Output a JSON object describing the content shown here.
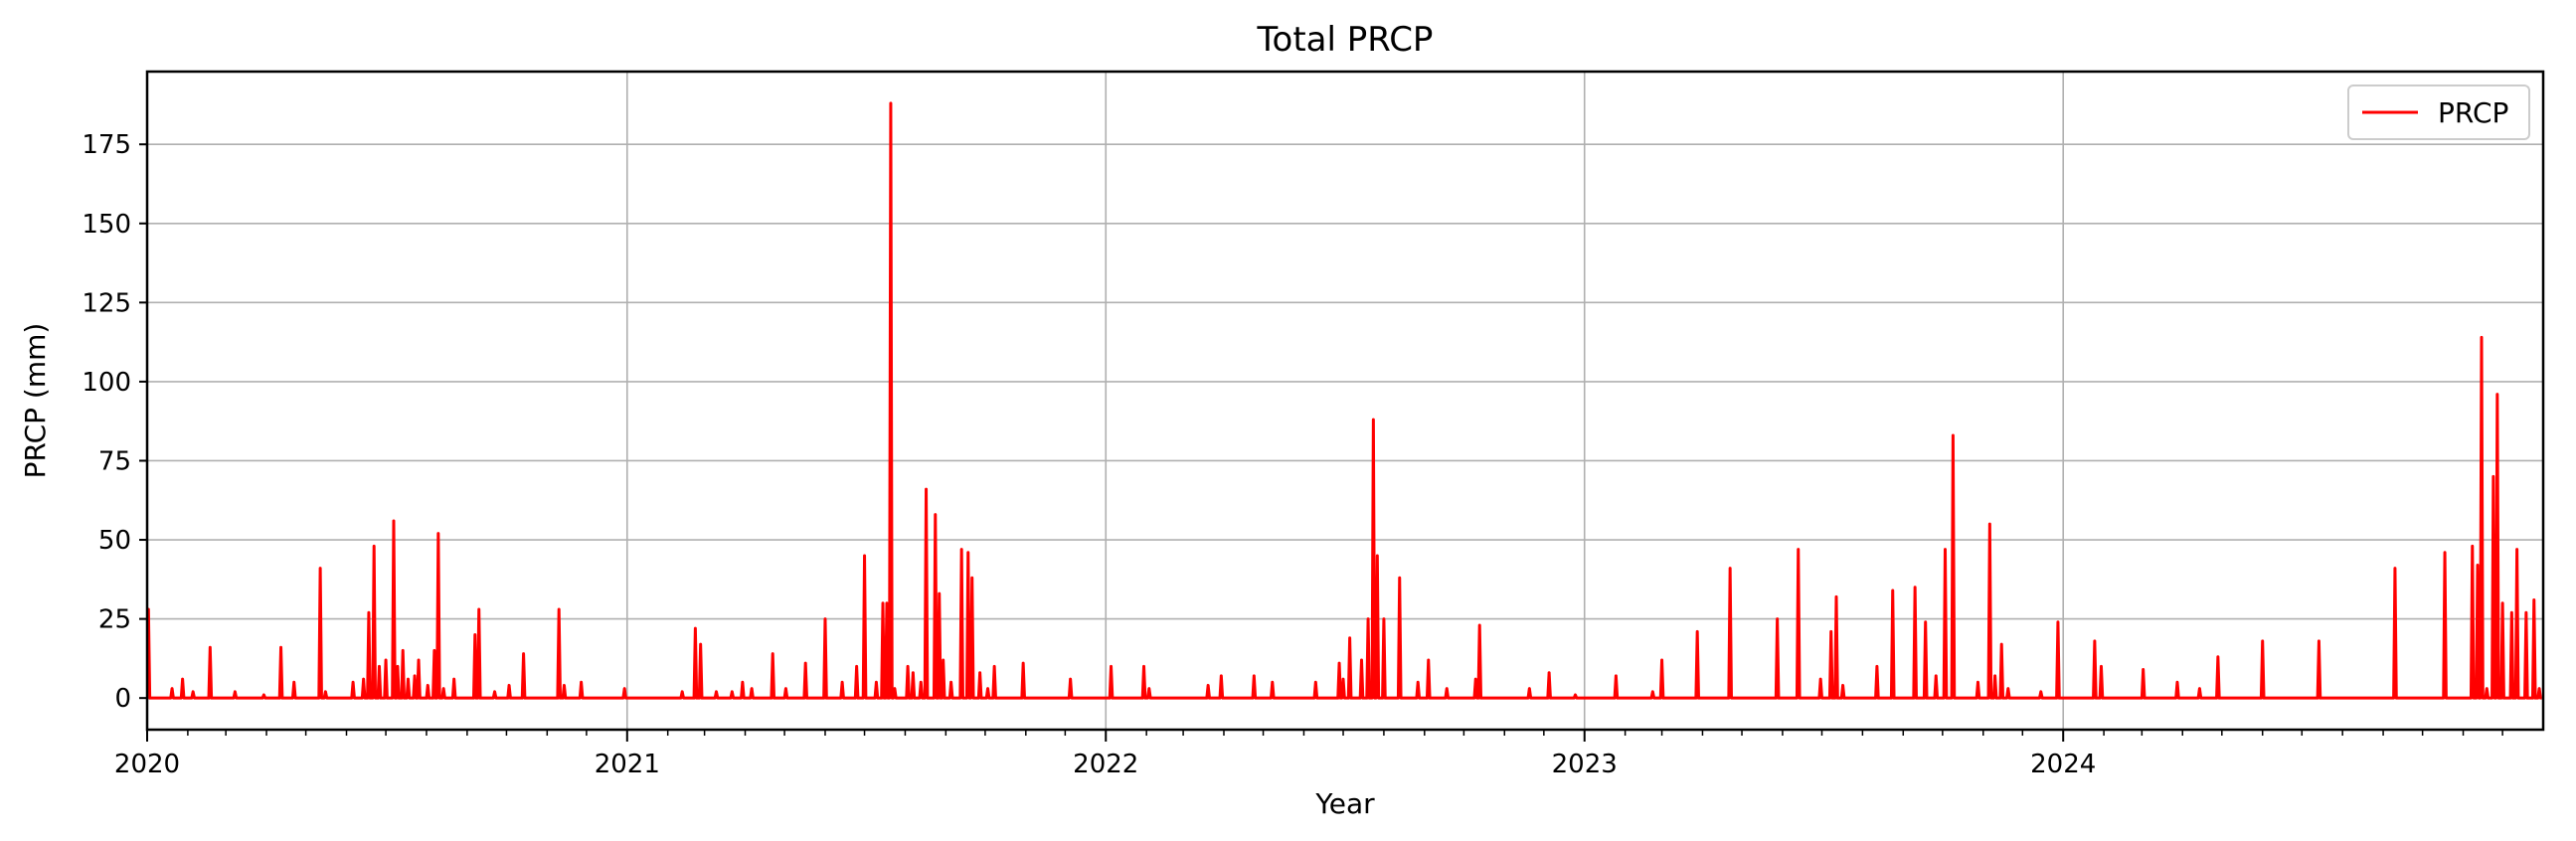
{
  "chart_data": {
    "type": "line",
    "title": "Total PRCP",
    "xlabel": "Year",
    "ylabel": "PRCP (mm)",
    "xlim": [
      "2020-01-01",
      "2024-12-31"
    ],
    "ylim": [
      -10,
      198
    ],
    "x_ticks": [
      "2020",
      "2021",
      "2022",
      "2023",
      "2024"
    ],
    "y_ticks": [
      0,
      25,
      50,
      75,
      100,
      125,
      150,
      175
    ],
    "grid": true,
    "legend": {
      "position": "top-right",
      "entries": [
        "PRCP"
      ]
    },
    "series": [
      {
        "name": "PRCP",
        "color": "#ff0000",
        "points": [
          [
            "2020-01-01",
            28
          ],
          [
            "2020-01-02",
            28
          ],
          [
            "2020-01-03",
            0
          ],
          [
            "2020-01-20",
            3
          ],
          [
            "2020-01-28",
            6
          ],
          [
            "2020-02-05",
            2
          ],
          [
            "2020-02-18",
            16
          ],
          [
            "2020-03-08",
            2
          ],
          [
            "2020-03-30",
            1
          ],
          [
            "2020-04-12",
            16
          ],
          [
            "2020-04-22",
            5
          ],
          [
            "2020-05-12",
            41
          ],
          [
            "2020-05-16",
            2
          ],
          [
            "2020-06-06",
            5
          ],
          [
            "2020-06-14",
            6
          ],
          [
            "2020-06-18",
            27
          ],
          [
            "2020-06-22",
            48
          ],
          [
            "2020-06-26",
            10
          ],
          [
            "2020-07-01",
            12
          ],
          [
            "2020-07-07",
            56
          ],
          [
            "2020-07-10",
            10
          ],
          [
            "2020-07-14",
            15
          ],
          [
            "2020-07-18",
            6
          ],
          [
            "2020-07-23",
            7
          ],
          [
            "2020-07-26",
            12
          ],
          [
            "2020-08-02",
            4
          ],
          [
            "2020-08-07",
            15
          ],
          [
            "2020-08-10",
            52
          ],
          [
            "2020-08-14",
            3
          ],
          [
            "2020-08-22",
            6
          ],
          [
            "2020-09-07",
            20
          ],
          [
            "2020-09-10",
            28
          ],
          [
            "2020-09-22",
            2
          ],
          [
            "2020-10-03",
            4
          ],
          [
            "2020-10-14",
            14
          ],
          [
            "2020-11-10",
            28
          ],
          [
            "2020-11-14",
            4
          ],
          [
            "2020-11-27",
            5
          ],
          [
            "2020-12-30",
            3
          ],
          [
            "2021-02-12",
            2
          ],
          [
            "2021-02-22",
            22
          ],
          [
            "2021-02-26",
            17
          ],
          [
            "2021-03-10",
            2
          ],
          [
            "2021-03-22",
            2
          ],
          [
            "2021-03-30",
            5
          ],
          [
            "2021-04-06",
            3
          ],
          [
            "2021-04-22",
            14
          ],
          [
            "2021-05-02",
            3
          ],
          [
            "2021-05-17",
            11
          ],
          [
            "2021-06-01",
            25
          ],
          [
            "2021-06-14",
            5
          ],
          [
            "2021-06-25",
            10
          ],
          [
            "2021-07-01",
            45
          ],
          [
            "2021-07-10",
            5
          ],
          [
            "2021-07-15",
            30
          ],
          [
            "2021-07-18",
            30
          ],
          [
            "2021-07-21",
            188
          ],
          [
            "2021-07-24",
            3
          ],
          [
            "2021-08-03",
            10
          ],
          [
            "2021-08-07",
            8
          ],
          [
            "2021-08-13",
            5
          ],
          [
            "2021-08-17",
            66
          ],
          [
            "2021-08-24",
            58
          ],
          [
            "2021-08-27",
            33
          ],
          [
            "2021-08-30",
            12
          ],
          [
            "2021-09-05",
            5
          ],
          [
            "2021-09-13",
            47
          ],
          [
            "2021-09-18",
            46
          ],
          [
            "2021-09-21",
            38
          ],
          [
            "2021-09-27",
            8
          ],
          [
            "2021-10-03",
            3
          ],
          [
            "2021-10-08",
            10
          ],
          [
            "2021-10-30",
            11
          ],
          [
            "2021-12-05",
            6
          ],
          [
            "2022-01-05",
            10
          ],
          [
            "2022-01-30",
            10
          ],
          [
            "2022-02-03",
            3
          ],
          [
            "2022-03-20",
            4
          ],
          [
            "2022-03-30",
            7
          ],
          [
            "2022-04-24",
            7
          ],
          [
            "2022-05-08",
            5
          ],
          [
            "2022-06-10",
            5
          ],
          [
            "2022-06-28",
            11
          ],
          [
            "2022-07-01",
            6
          ],
          [
            "2022-07-06",
            19
          ],
          [
            "2022-07-15",
            12
          ],
          [
            "2022-07-20",
            25
          ],
          [
            "2022-07-24",
            88
          ],
          [
            "2022-07-27",
            45
          ],
          [
            "2022-08-01",
            25
          ],
          [
            "2022-08-13",
            38
          ],
          [
            "2022-08-27",
            5
          ],
          [
            "2022-09-04",
            12
          ],
          [
            "2022-09-18",
            3
          ],
          [
            "2022-10-10",
            6
          ],
          [
            "2022-10-13",
            23
          ],
          [
            "2022-11-20",
            3
          ],
          [
            "2022-12-05",
            8
          ],
          [
            "2022-12-25",
            1
          ],
          [
            "2023-01-25",
            7
          ],
          [
            "2023-02-22",
            2
          ],
          [
            "2023-03-01",
            12
          ],
          [
            "2023-03-28",
            21
          ],
          [
            "2023-04-22",
            41
          ],
          [
            "2023-05-28",
            25
          ],
          [
            "2023-06-13",
            47
          ],
          [
            "2023-06-30",
            6
          ],
          [
            "2023-07-08",
            21
          ],
          [
            "2023-07-12",
            32
          ],
          [
            "2023-07-17",
            4
          ],
          [
            "2023-08-12",
            10
          ],
          [
            "2023-08-24",
            34
          ],
          [
            "2023-09-10",
            35
          ],
          [
            "2023-09-18",
            24
          ],
          [
            "2023-09-26",
            7
          ],
          [
            "2023-10-03",
            47
          ],
          [
            "2023-10-09",
            83
          ],
          [
            "2023-10-28",
            5
          ],
          [
            "2023-11-06",
            55
          ],
          [
            "2023-11-10",
            7
          ],
          [
            "2023-11-15",
            17
          ],
          [
            "2023-11-20",
            3
          ],
          [
            "2023-12-15",
            2
          ],
          [
            "2023-12-28",
            24
          ],
          [
            "2024-01-25",
            18
          ],
          [
            "2024-01-30",
            10
          ],
          [
            "2024-03-02",
            9
          ],
          [
            "2024-03-28",
            5
          ],
          [
            "2024-04-14",
            3
          ],
          [
            "2024-04-28",
            13
          ],
          [
            "2024-06-01",
            18
          ],
          [
            "2024-07-14",
            18
          ],
          [
            "2024-09-10",
            41
          ],
          [
            "2024-10-18",
            46
          ],
          [
            "2024-11-08",
            48
          ],
          [
            "2024-11-12",
            42
          ],
          [
            "2024-11-15",
            114
          ],
          [
            "2024-11-19",
            3
          ],
          [
            "2024-11-24",
            70
          ],
          [
            "2024-11-27",
            96
          ],
          [
            "2024-12-01",
            30
          ],
          [
            "2024-12-08",
            27
          ],
          [
            "2024-12-12",
            47
          ],
          [
            "2024-12-19",
            27
          ],
          [
            "2024-12-25",
            31
          ],
          [
            "2024-12-29",
            3
          ]
        ]
      }
    ]
  }
}
